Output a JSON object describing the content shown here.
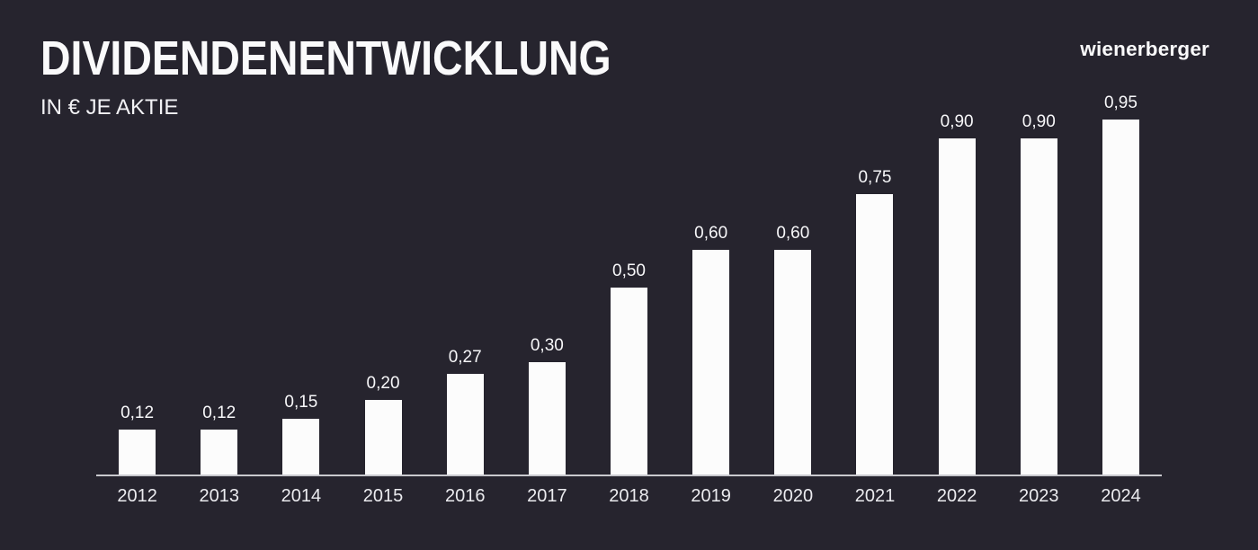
{
  "header": {
    "title": "DIVIDENDENENTWICKLUNG",
    "subtitle": "IN € JE AKTIE",
    "logo_text": "wienerberger"
  },
  "chart_data": {
    "type": "bar",
    "title": "DIVIDENDENENTWICKLUNG",
    "subtitle": "IN € JE AKTIE",
    "unit": "EUR je Aktie",
    "categories": [
      "2012",
      "2013",
      "2014",
      "2015",
      "2016",
      "2017",
      "2018",
      "2019",
      "2020",
      "2021",
      "2022",
      "2023",
      "2024"
    ],
    "values": [
      0.12,
      0.12,
      0.15,
      0.2,
      0.27,
      0.3,
      0.5,
      0.6,
      0.6,
      0.75,
      0.9,
      0.9,
      0.95
    ],
    "value_labels": [
      "0,12",
      "0,12",
      "0,15",
      "0,20",
      "0,27",
      "0,30",
      "0,50",
      "0,60",
      "0,60",
      "0,75",
      "0,90",
      "0,90",
      "0,95"
    ],
    "ylim": [
      0,
      1.0
    ],
    "grid": false,
    "legend": false,
    "bar_color": "#FCFCFC",
    "background_color": "#26242E",
    "axis_line_color": "#C9C9CE",
    "text_color": "#FFFFFF"
  }
}
